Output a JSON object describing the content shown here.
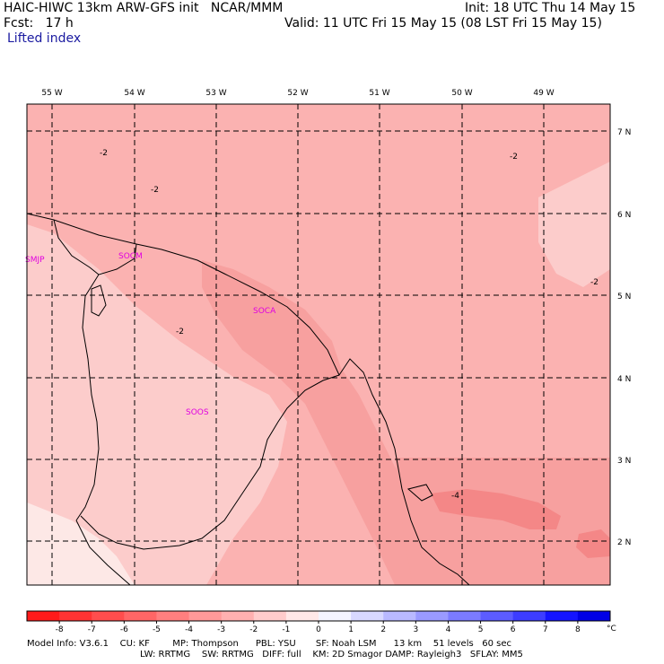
{
  "header": {
    "model_title": "HAIC-HIWC 13km ARW-GFS init   NCAR/MMM",
    "init_time": "Init: 18 UTC Thu 14 May 15",
    "forecast_hour": "Fcst:   17 h",
    "valid_time": "Valid: 11 UTC Fri 15 May 15 (08 LST Fri 15 May 15)",
    "field_name": "Lifted index"
  },
  "map": {
    "longitude_labels": [
      "55 W",
      "54 W",
      "53 W",
      "52 W",
      "51 W",
      "50 W",
      "49 W"
    ],
    "latitude_labels": [
      "7 N",
      "6 N",
      "5 N",
      "4 N",
      "3 N",
      "2 N"
    ],
    "stations": [
      "SMJP",
      "SOCM",
      "SOCA",
      "SOOS"
    ],
    "contour_labels": [
      "-2",
      "-2",
      "-2",
      "-2",
      "-2",
      "-4"
    ]
  },
  "colorbar": {
    "tick_labels": [
      "-8",
      "-7",
      "-6",
      "-5",
      "-4",
      "-3",
      "-2",
      "-1",
      "0",
      "1",
      "2",
      "3",
      "4",
      "5",
      "6",
      "7",
      "8"
    ],
    "unit": "°C",
    "colors": [
      "#ff1a1a",
      "#ff3333",
      "#ff4d4d",
      "#ff6666",
      "#ff7f7f",
      "#ff9999",
      "#ffb0b0",
      "#ffcccc",
      "#ffe8e8",
      "#f4f4ff",
      "#d8d8ff",
      "#b9b9ff",
      "#9a9aff",
      "#7b7bff",
      "#5c5cff",
      "#3d3dff",
      "#1414ff",
      "#0000e6"
    ]
  },
  "footer": {
    "line1": "Model Info: V3.6.1    CU: KF        MP: Thompson      PBL: YSU       SF: Noah LSM      13 km    51 levels   60 sec",
    "line2": "LW: RRTMG    SW: RRTMG   DIFF: full    KM: 2D Smagor DAMP: Rayleigh3   SFLAY: MM5"
  },
  "fill_colors": {
    "very_light": "#fde8e6",
    "light": "#fccccb",
    "medium_light": "#fbb2b1",
    "medium": "#f7a09f",
    "strong": "#f48787"
  }
}
